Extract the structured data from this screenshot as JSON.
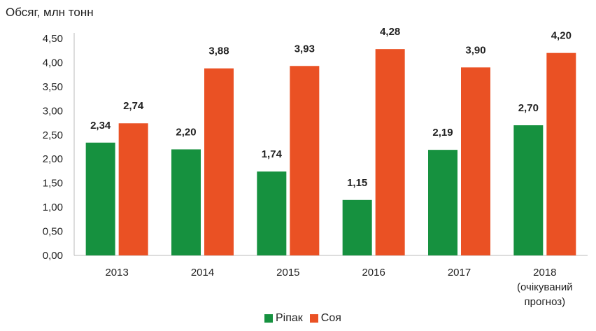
{
  "chart_data": {
    "type": "bar",
    "title": "",
    "ylabel": "Обсяг, млн тонн",
    "xlabel": "",
    "ylim": [
      0,
      4.5
    ],
    "yticks": [
      "0,00",
      "0,50",
      "1,00",
      "1,50",
      "2,00",
      "2,50",
      "3,00",
      "3,50",
      "4,00",
      "4,50"
    ],
    "categories": [
      [
        "2013"
      ],
      [
        "2014"
      ],
      [
        "2015"
      ],
      [
        "2016"
      ],
      [
        "2017"
      ],
      [
        "2018",
        "(очікуваний",
        "прогноз)"
      ]
    ],
    "series": [
      {
        "name": "Ріпак",
        "color": "#16913f",
        "values": [
          2.34,
          2.2,
          1.74,
          1.15,
          2.19,
          2.7
        ],
        "labels": [
          "2,34",
          "2,20",
          "1,74",
          "1,15",
          "2,19",
          "2,70"
        ]
      },
      {
        "name": "Соя",
        "color": "#ea5124",
        "values": [
          2.74,
          3.88,
          3.93,
          4.28,
          3.9,
          4.2
        ],
        "labels": [
          "2,74",
          "3,88",
          "3,93",
          "4,28",
          "3,90",
          "4,20"
        ]
      }
    ],
    "grid": false,
    "legend": "bottom"
  }
}
